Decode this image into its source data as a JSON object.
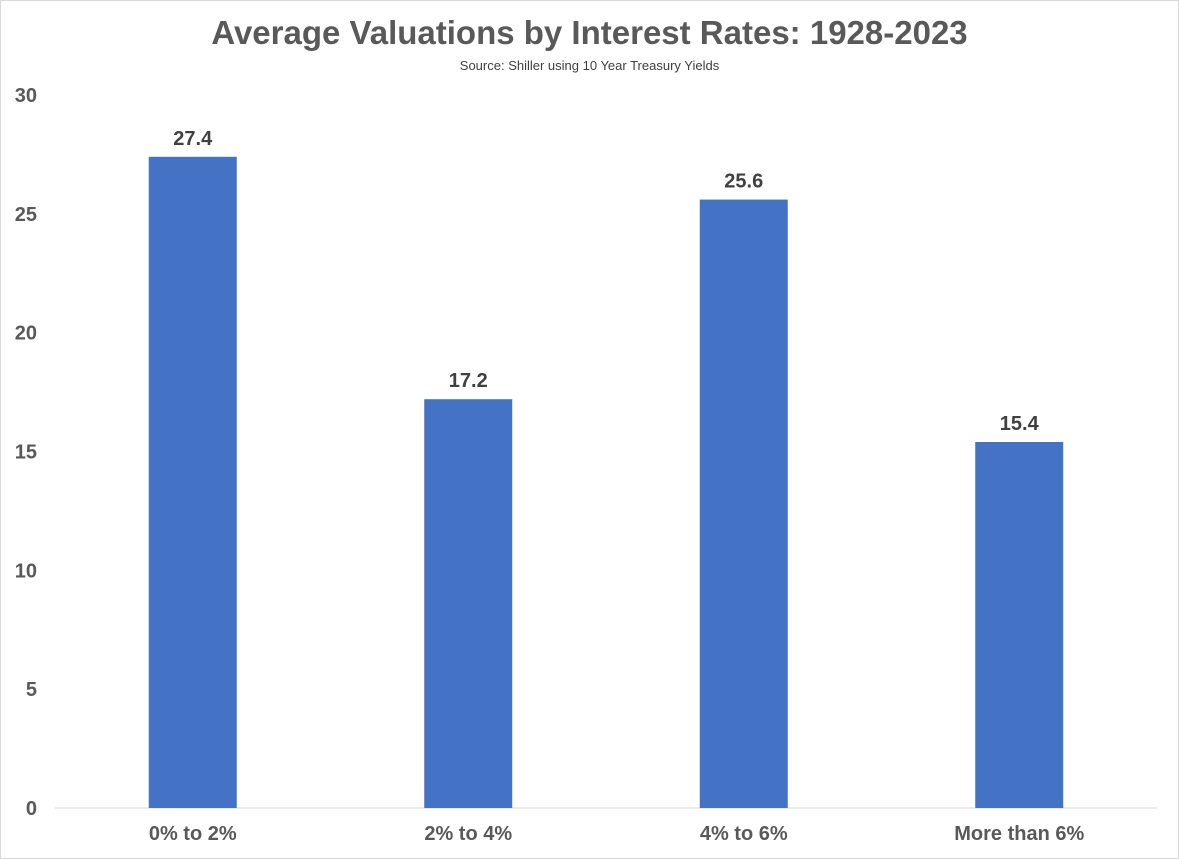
{
  "chart_data": {
    "type": "bar",
    "title": "Average Valuations by Interest Rates: 1928-2023",
    "subtitle": "Source: Shiller using 10 Year Treasury Yields",
    "categories": [
      "0% to 2%",
      "2% to 4%",
      "4% to 6%",
      "More than 6%"
    ],
    "values": [
      27.4,
      17.2,
      25.6,
      15.4
    ],
    "value_labels": [
      "27.4",
      "17.2",
      "25.6",
      "15.4"
    ],
    "xlabel": "",
    "ylabel": "",
    "ylim": [
      0,
      30
    ],
    "yticks": [
      0,
      5,
      10,
      15,
      20,
      25,
      30
    ],
    "grid": false,
    "legend": "none",
    "bar_color": "#4472C4"
  }
}
